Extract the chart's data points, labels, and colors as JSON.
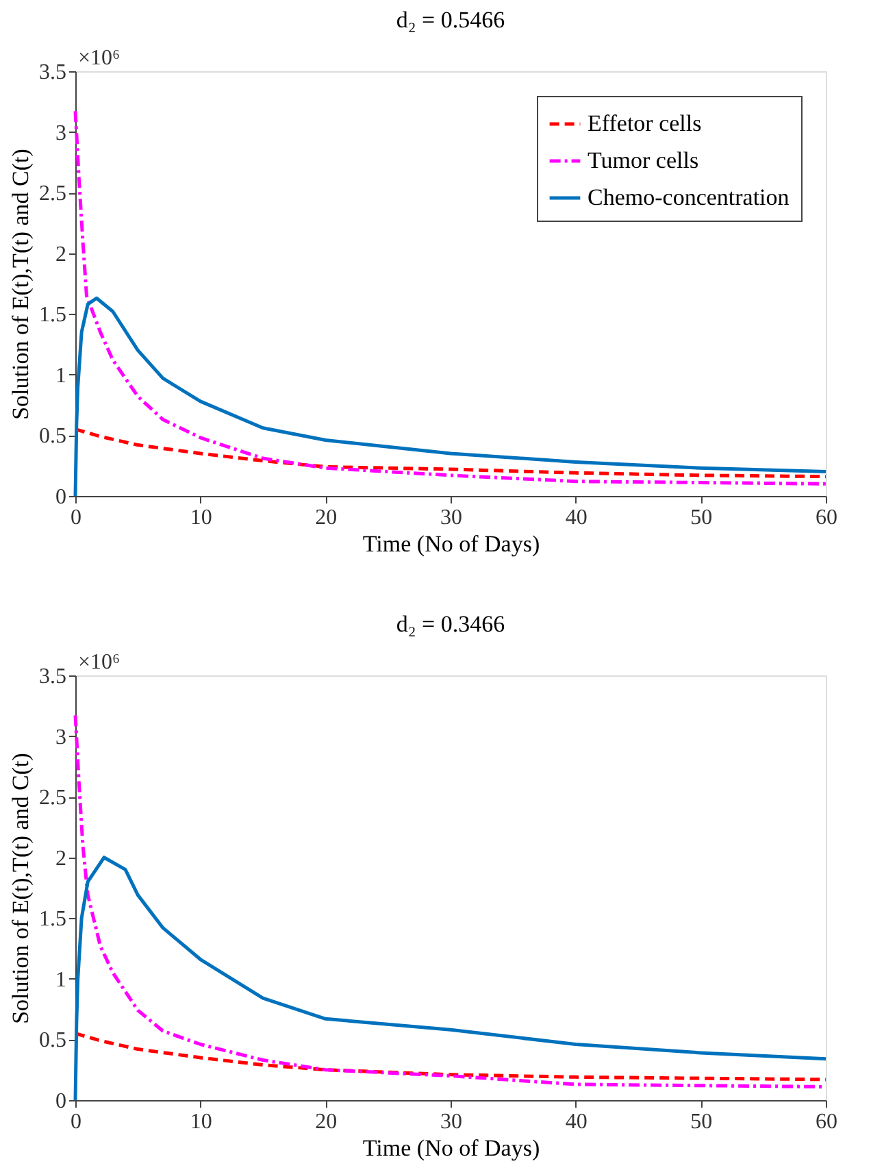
{
  "chart_data": [
    {
      "type": "line",
      "title": "d₂ = 0.5466",
      "xlabel": "Time (No of Days)",
      "ylabel": "Solution of E(t),T(t) and C(t)",
      "annotations": [
        "×10⁶"
      ],
      "xlim": [
        0,
        60
      ],
      "xticks": [
        0,
        10,
        20,
        30,
        40,
        50,
        60
      ],
      "ylim": [
        0,
        3.5
      ],
      "yticks": [
        0,
        0.5,
        1,
        1.5,
        2,
        2.5,
        3,
        3.5
      ],
      "grid": false,
      "legend": "top right",
      "series": [
        {
          "name": "Effetor cells",
          "color": "#ff0000",
          "line_style": "dashed",
          "x": [
            0,
            2,
            5,
            10,
            15,
            20,
            30,
            40,
            50,
            60
          ],
          "values": [
            0.55,
            0.49,
            0.42,
            0.35,
            0.29,
            0.24,
            0.22,
            0.19,
            0.17,
            0.16
          ]
        },
        {
          "name": "Tumor cells",
          "color": "#ff00ff",
          "line_style": "dotted",
          "x": [
            0,
            0.3,
            0.6,
            0.9,
            2,
            3,
            5,
            7,
            10,
            15,
            20,
            30,
            40,
            50,
            60
          ],
          "values": [
            3.17,
            2.6,
            2.1,
            1.65,
            1.35,
            1.12,
            0.82,
            0.63,
            0.48,
            0.31,
            0.23,
            0.17,
            0.12,
            0.11,
            0.1
          ]
        },
        {
          "name": "Chemo-concentration",
          "color": "#0072bd",
          "line_style": "solid",
          "x": [
            0,
            0.1,
            0.2,
            0.5,
            1,
            1.7,
            3,
            5,
            7,
            10,
            15,
            20,
            30,
            40,
            50,
            60
          ],
          "values": [
            0,
            0.6,
            0.9,
            1.35,
            1.58,
            1.63,
            1.52,
            1.2,
            0.97,
            0.78,
            0.56,
            0.46,
            0.35,
            0.28,
            0.23,
            0.2
          ]
        }
      ]
    },
    {
      "type": "line",
      "title": "d₂ = 0.3466",
      "xlabel": "Time (No of Days)",
      "ylabel": "Solution of E(t),T(t) and C(t)",
      "annotations": [
        "×10⁶"
      ],
      "xlim": [
        0,
        60
      ],
      "xticks": [
        0,
        10,
        20,
        30,
        40,
        50,
        60
      ],
      "ylim": [
        0,
        3.5
      ],
      "yticks": [
        0,
        0.5,
        1,
        1.5,
        2,
        2.5,
        3,
        3.5
      ],
      "grid": false,
      "legend": "top right",
      "series": [
        {
          "name": "Effetor cells",
          "color": "#ff0000",
          "line_style": "dashed",
          "x": [
            0,
            2,
            5,
            10,
            15,
            20,
            30,
            40,
            50,
            60
          ],
          "values": [
            0.55,
            0.49,
            0.42,
            0.35,
            0.29,
            0.25,
            0.21,
            0.19,
            0.18,
            0.17
          ]
        },
        {
          "name": "Tumor cells",
          "color": "#ff00ff",
          "line_style": "dotted",
          "x": [
            0,
            0.3,
            0.6,
            1,
            2,
            3,
            5,
            7,
            10,
            15,
            20,
            30,
            40,
            50,
            60
          ],
          "values": [
            3.17,
            2.6,
            2.1,
            1.69,
            1.27,
            1.05,
            0.74,
            0.57,
            0.46,
            0.33,
            0.25,
            0.2,
            0.13,
            0.12,
            0.11
          ]
        },
        {
          "name": "Chemo-concentration",
          "color": "#0072bd",
          "line_style": "solid",
          "x": [
            0,
            0.1,
            0.2,
            0.5,
            1,
            2.3,
            4,
            5,
            7,
            10,
            15,
            20,
            30,
            40,
            50,
            60
          ],
          "values": [
            0,
            0.65,
            1.0,
            1.5,
            1.8,
            2.0,
            1.9,
            1.69,
            1.42,
            1.16,
            0.84,
            0.67,
            0.58,
            0.46,
            0.39,
            0.34
          ]
        }
      ]
    }
  ]
}
